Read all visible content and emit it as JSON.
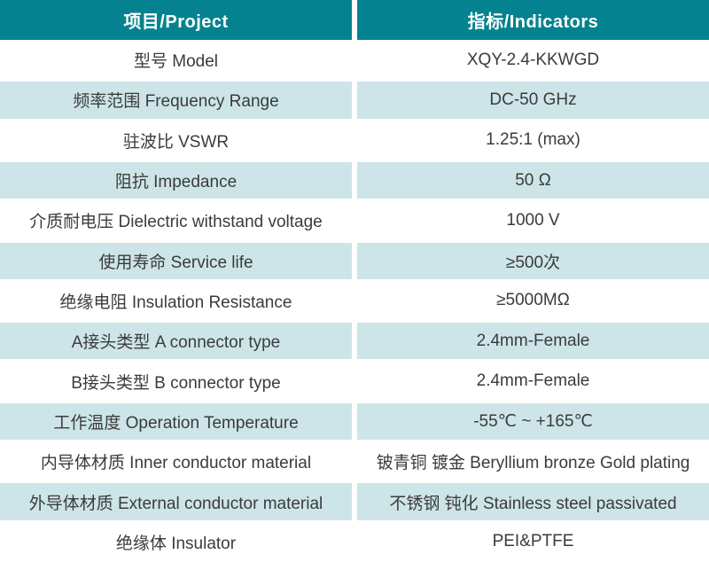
{
  "table": {
    "header": {
      "project": "项目/Project",
      "indicators": "指标/Indicators"
    },
    "colors": {
      "header_bg": "#05828f",
      "header_text": "#ffffff",
      "alt_row_bg": "#cde5e8",
      "row_bg": "#ffffff",
      "body_text": "#3b3b3b"
    },
    "rows": [
      {
        "label": "型号 Model",
        "value": "XQY-2.4-KKWGD"
      },
      {
        "label": "频率范围 Frequency Range",
        "value": "DC-50 GHz"
      },
      {
        "label": "驻波比 VSWR",
        "value": "1.25:1 (max)"
      },
      {
        "label": "阻抗 Impedance",
        "value": "50 Ω"
      },
      {
        "label": "介质耐电压 Dielectric withstand voltage",
        "value": "1000 V"
      },
      {
        "label": "使用寿命 Service life",
        "value": "≥500次"
      },
      {
        "label": "绝缘电阻 Insulation Resistance",
        "value": "≥5000MΩ"
      },
      {
        "label": "A接头类型 A connector type",
        "value": "2.4mm-Female"
      },
      {
        "label": "B接头类型 B connector type",
        "value": "2.4mm-Female"
      },
      {
        "label": "工作温度 Operation Temperature",
        "value": "-55℃ ~ +165℃"
      },
      {
        "label": "内导体材质 Inner conductor material",
        "value": "铍青铜 镀金 Beryllium bronze Gold plating"
      },
      {
        "label": "外导体材质 External conductor material",
        "value": "不锈钢 钝化 Stainless steel passivated"
      },
      {
        "label": "绝缘体 Insulator",
        "value": "PEI&PTFE"
      }
    ]
  }
}
